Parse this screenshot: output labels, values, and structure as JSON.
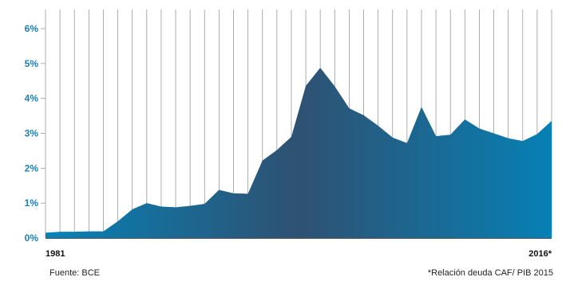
{
  "chart_data": {
    "type": "area",
    "x_start_label": "1981",
    "x_end_label": "2016*",
    "y_ticks": [
      "0%",
      "1%",
      "2%",
      "3%",
      "4%",
      "5%",
      "6%"
    ],
    "ylim": [
      0,
      6
    ],
    "grid": "vertical",
    "values": [
      0.15,
      0.18,
      0.18,
      0.19,
      0.19,
      0.48,
      0.82,
      1.0,
      0.9,
      0.88,
      0.92,
      0.98,
      1.38,
      1.28,
      1.27,
      2.22,
      2.52,
      2.9,
      4.36,
      4.88,
      4.35,
      3.72,
      3.52,
      3.22,
      2.88,
      2.72,
      3.76,
      2.92,
      2.96,
      3.4,
      3.14,
      3.0,
      2.86,
      2.78,
      2.98,
      3.36
    ],
    "colors": {
      "fill_start": "#0582b8",
      "fill_mid": "#2f5171",
      "fill_end": "#0780b4",
      "grid": "#999999",
      "axis": "#555555",
      "ytick": "#1f7fb0"
    }
  },
  "source_note": "Fuente: BCE",
  "footnote": "*Relación deuda CAF/ PIB 2015"
}
